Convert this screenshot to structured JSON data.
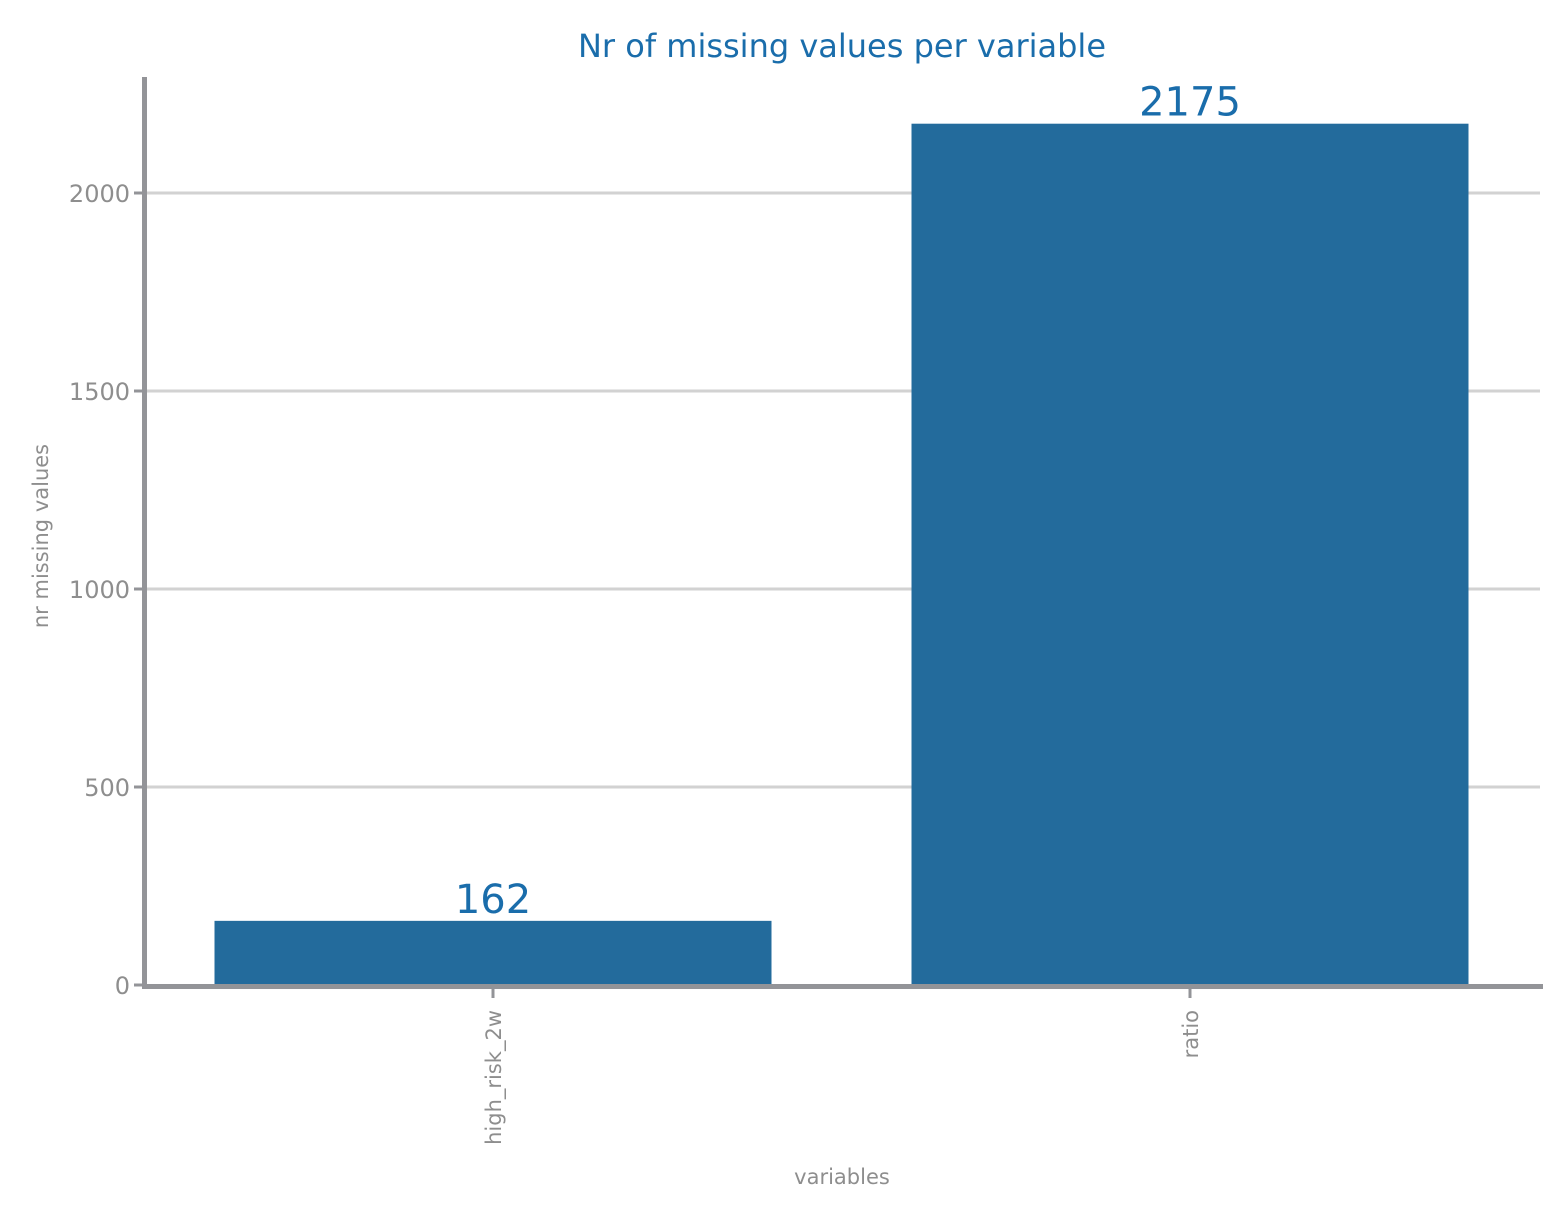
{
  "chart_data": {
    "type": "bar",
    "title": "Nr of missing values per variable",
    "xlabel": "variables",
    "ylabel": "nr missing values",
    "categories": [
      "high_risk_2w",
      "ratio"
    ],
    "values": [
      162,
      2175
    ],
    "value_labels": [
      "162",
      "2175"
    ],
    "ylim": [
      0,
      2300
    ],
    "yticks": [
      0,
      500,
      1000,
      1500,
      2000
    ],
    "ytick_labels": [
      "0",
      "500",
      "1000",
      "1500",
      "2000"
    ],
    "grid": "horizontal",
    "legend": "none"
  },
  "colors": {
    "bar": "#236B9C",
    "title": "#1A6DAB",
    "value_label": "#1A6DAB",
    "axis": "#939498",
    "tick_text": "#8E8E8E",
    "grid": "#D2D2D2",
    "background": "#FFFFFF"
  }
}
